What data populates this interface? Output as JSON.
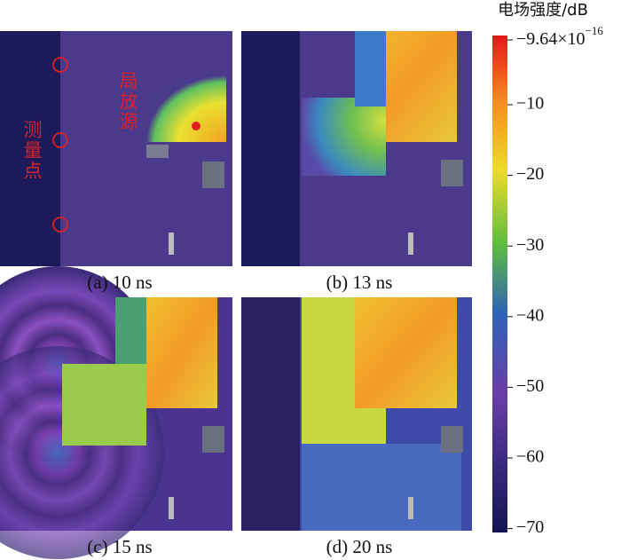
{
  "colorbar": {
    "title": "电场强度/dB",
    "ticks": [
      {
        "base": "−9.64×10",
        "exponent": "−16"
      },
      "−10",
      "−20",
      "−30",
      "−40",
      "−50",
      "−60",
      "−70"
    ]
  },
  "panels": [
    {
      "label": "(a)  10 ns",
      "source": "局放源",
      "measure": "测量点"
    },
    {
      "label": "(b)  13 ns"
    },
    {
      "label": "(c)  15 ns"
    },
    {
      "label": "(d)  20 ns"
    }
  ]
}
